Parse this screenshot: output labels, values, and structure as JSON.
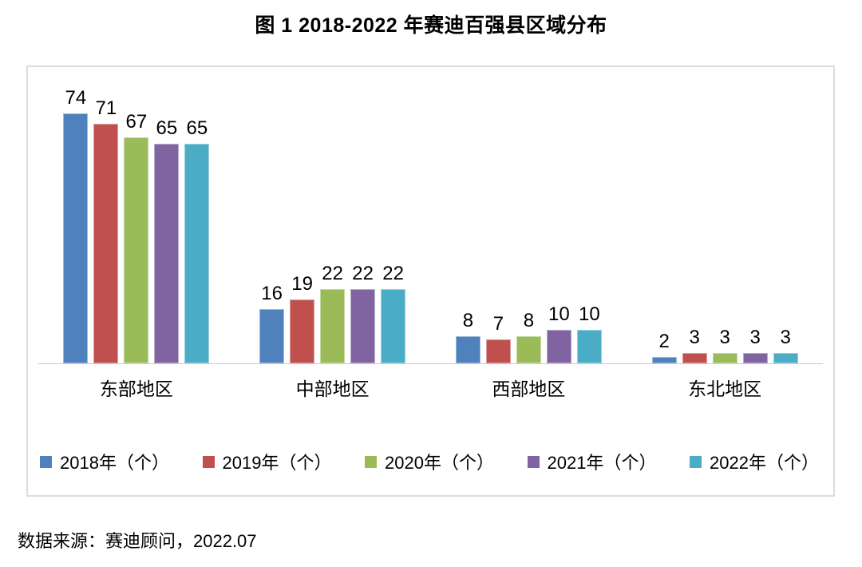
{
  "title": "图 1 2018-2022 年赛迪百强县区域分布",
  "source_note": "数据来源：赛迪顾问，2022.07",
  "chart_data": {
    "type": "bar",
    "title": "图 1 2018-2022 年赛迪百强县区域分布",
    "categories": [
      "东部地区",
      "中部地区",
      "西部地区",
      "东北地区"
    ],
    "series": [
      {
        "name": "2018年（个）",
        "color": "#4F81BD",
        "values": [
          74,
          16,
          8,
          2
        ]
      },
      {
        "name": "2019年（个）",
        "color": "#C0504D",
        "values": [
          71,
          19,
          7,
          3
        ]
      },
      {
        "name": "2020年（个）",
        "color": "#9BBB59",
        "values": [
          67,
          22,
          8,
          3
        ]
      },
      {
        "name": "2021年（个）",
        "color": "#8064A2",
        "values": [
          65,
          22,
          10,
          3
        ]
      },
      {
        "name": "2022年（个）",
        "color": "#4BACC6",
        "values": [
          65,
          22,
          10,
          3
        ]
      }
    ],
    "xlabel": "",
    "ylabel": "",
    "ylim": [
      0,
      88
    ],
    "grid": false,
    "data_labels": true,
    "legend_position": "bottom",
    "frame_border_color": "#dcdcdc",
    "baseline_color": "#c9c9c9"
  }
}
